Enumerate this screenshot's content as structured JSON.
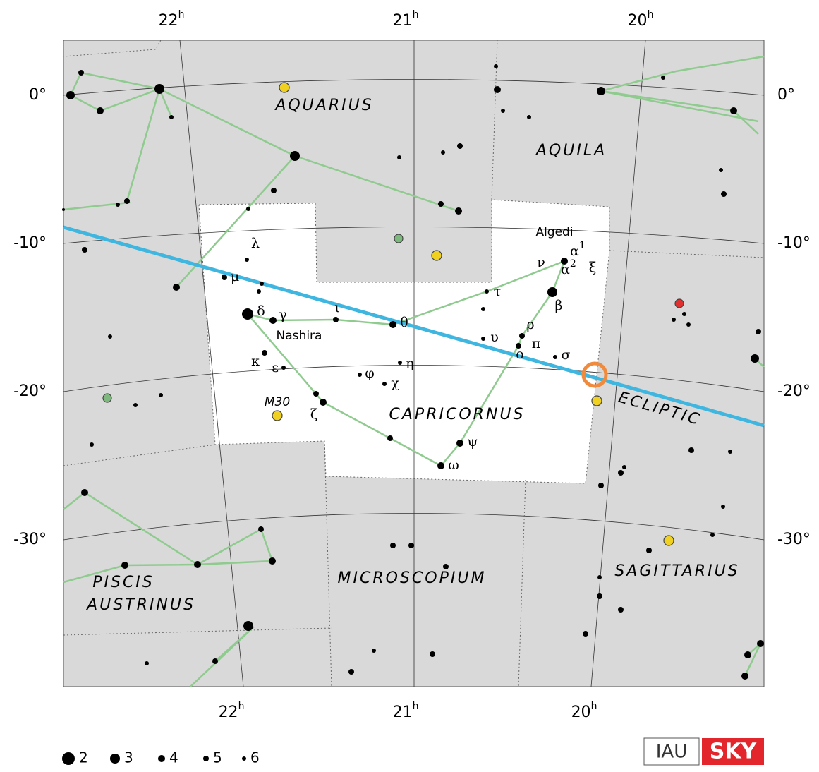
{
  "map": {
    "ra_top": [
      {
        "hours": "22",
        "sup": "h"
      },
      {
        "hours": "21",
        "sup": "h"
      },
      {
        "hours": "20",
        "sup": "h"
      }
    ],
    "ra_bottom": [
      {
        "hours": "22",
        "sup": "h"
      },
      {
        "hours": "21",
        "sup": "h"
      },
      {
        "hours": "20",
        "sup": "h"
      }
    ],
    "dec_left": [
      "0°",
      "-10°",
      "-20°",
      "-30°"
    ],
    "dec_right": [
      "0°",
      "-10°",
      "-20°",
      "-30°"
    ],
    "constellations": [
      "AQUARIUS",
      "AQUILA",
      "CAPRICORNUS",
      "MICROSCOPIUM",
      "SAGITTARIUS",
      "PISCIS",
      "AUSTRINUS"
    ],
    "ecliptic": "ECLIPTIC",
    "objects": [
      "M30",
      "Algedi",
      "Nashira"
    ],
    "stars": [
      "λ",
      "μ",
      "δ",
      "γ",
      "ι",
      "θ",
      "τ",
      "ν",
      "ξ",
      "β",
      "ρ",
      "π",
      "σ",
      "ο",
      "υ",
      "η",
      "φ",
      "χ",
      "κ",
      "ε",
      "ζ",
      "ψ",
      "ω"
    ],
    "alpha": [
      {
        "letter": "α",
        "sup": "1"
      },
      {
        "letter": "α",
        "sup": "2"
      }
    ],
    "legend": [
      "2",
      "3",
      "4",
      "5",
      "6"
    ],
    "logo": {
      "left": "IAU",
      "right": "SKY"
    }
  }
}
